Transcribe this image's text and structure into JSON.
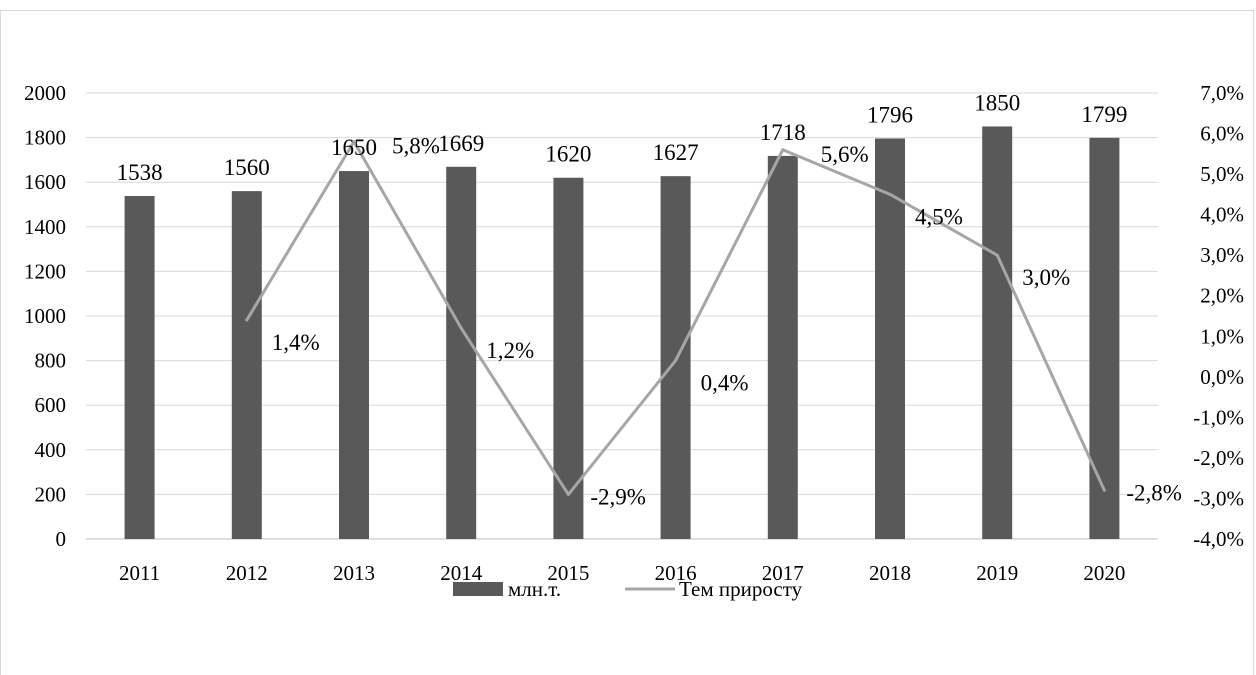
{
  "chart_data": {
    "type": "bar",
    "categories": [
      "2011",
      "2012",
      "2013",
      "2014",
      "2015",
      "2016",
      "2017",
      "2018",
      "2019",
      "2020"
    ],
    "series": [
      {
        "name": "млн.т.",
        "type": "bar",
        "axis": "left",
        "color": "#595959",
        "values": [
          1538,
          1560,
          1650,
          1669,
          1620,
          1627,
          1718,
          1796,
          1850,
          1799
        ],
        "labels": [
          "1538",
          "1560",
          "1650",
          "1669",
          "1620",
          "1627",
          "1718",
          "1796",
          "1850",
          "1799"
        ]
      },
      {
        "name": "Тем приросту",
        "type": "line",
        "axis": "right",
        "color": "#a6a6a6",
        "values": [
          null,
          1.4,
          5.8,
          1.2,
          -2.9,
          0.4,
          5.6,
          4.5,
          3.0,
          -2.8
        ],
        "labels": [
          "",
          "1,4%",
          "5,8%",
          "1,2%",
          "-2,9%",
          "0,4%",
          "5,6%",
          "4,5%",
          "3,0%",
          "-2,8%"
        ]
      }
    ],
    "y_left": {
      "ylim": [
        0,
        2000
      ],
      "ticks": [
        "0",
        "200",
        "400",
        "600",
        "800",
        "1000",
        "1200",
        "1400",
        "1600",
        "1800",
        "2000"
      ]
    },
    "y_right": {
      "ylim": [
        -4.0,
        7.0
      ],
      "ticks": [
        "-4,0%",
        "-3,0%",
        "-2,0%",
        "-1,0%",
        "0,0%",
        "1,0%",
        "2,0%",
        "3,0%",
        "4,0%",
        "5,0%",
        "6,0%",
        "7,0%"
      ]
    },
    "grid": true,
    "legend_position": "bottom"
  }
}
